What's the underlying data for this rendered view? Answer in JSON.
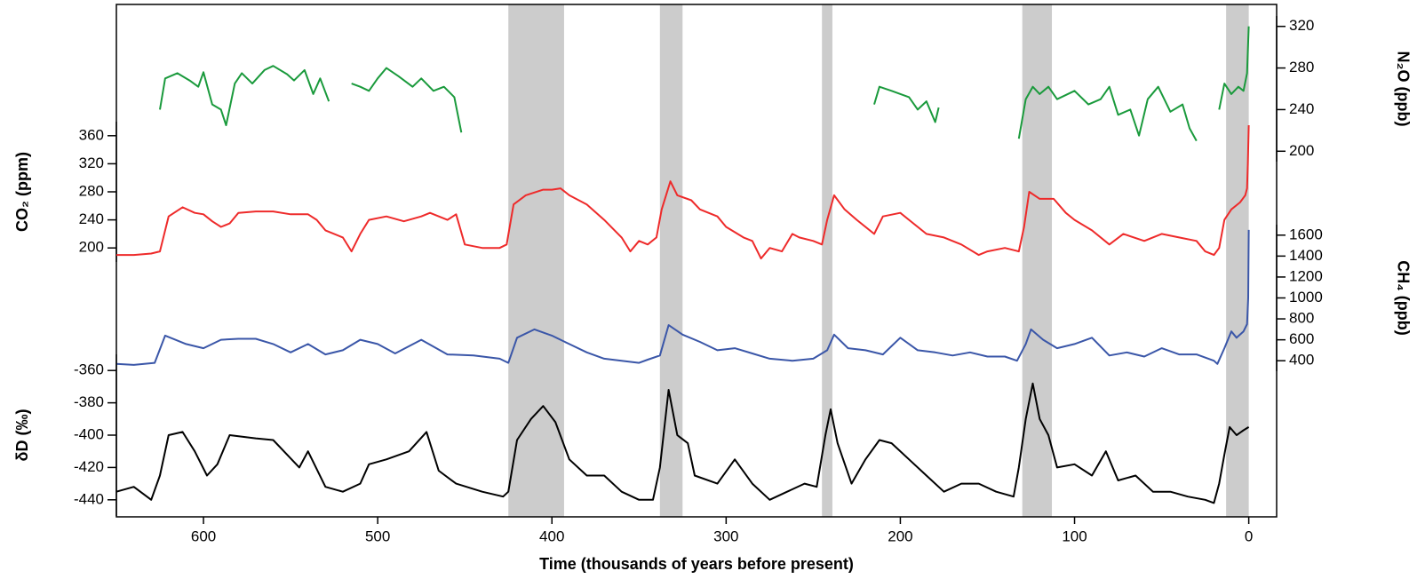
{
  "chart_data": {
    "type": "line",
    "x_label": "Time (thousands of years before present)",
    "xlim": [
      650,
      -16
    ],
    "xticks": [
      600,
      500,
      400,
      300,
      200,
      100,
      0
    ],
    "shaded": [
      [
        425,
        393
      ],
      [
        338,
        325
      ],
      [
        245,
        239
      ],
      [
        130,
        113
      ],
      [
        13,
        0
      ]
    ],
    "panels": [
      {
        "y_label": "N₂O (ppb)",
        "side": "right",
        "ylim": [
          190,
          330
        ],
        "yticks": [
          200,
          240,
          280,
          320
        ],
        "color": "#1a9a3c",
        "x": [
          625,
          622,
          615,
          608,
          603,
          600,
          595,
          590,
          587,
          582,
          578,
          572,
          565,
          560,
          552,
          548,
          542,
          537,
          533,
          528,
          520,
          515,
          510,
          505,
          500,
          495,
          488,
          480,
          475,
          468,
          462,
          456,
          452,
          330,
          215,
          212,
          205,
          195,
          190,
          185,
          180,
          178,
          150,
          132,
          128,
          124,
          120,
          115,
          110,
          100,
          92,
          85,
          80,
          75,
          68,
          63,
          58,
          52,
          45,
          38,
          34,
          30,
          22,
          17,
          14,
          10,
          6,
          3,
          1,
          0
        ],
        "values": [
          240,
          270,
          275,
          268,
          262,
          276,
          245,
          240,
          225,
          265,
          275,
          265,
          278,
          282,
          274,
          268,
          278,
          255,
          270,
          248,
          null,
          265,
          262,
          258,
          270,
          280,
          272,
          262,
          270,
          258,
          262,
          252,
          218,
          null,
          245,
          262,
          258,
          252,
          240,
          248,
          228,
          242,
          null,
          212,
          250,
          262,
          255,
          262,
          250,
          258,
          245,
          250,
          262,
          235,
          240,
          215,
          250,
          262,
          238,
          245,
          222,
          210,
          null,
          240,
          265,
          255,
          262,
          258,
          275,
          320
        ]
      },
      {
        "y_label": "CO₂ (ppm)",
        "side": "left",
        "ylim": [
          180,
          380
        ],
        "yticks": [
          200,
          240,
          280,
          320,
          360
        ],
        "color": "#ee2a2a",
        "x": [
          650,
          640,
          630,
          625,
          620,
          612,
          605,
          600,
          595,
          590,
          585,
          580,
          570,
          560,
          550,
          540,
          535,
          530,
          520,
          515,
          510,
          505,
          495,
          485,
          475,
          470,
          460,
          455,
          450,
          440,
          430,
          426,
          422,
          415,
          405,
          400,
          395,
          390,
          380,
          370,
          360,
          355,
          350,
          345,
          340,
          337,
          332,
          328,
          320,
          315,
          305,
          300,
          290,
          285,
          280,
          275,
          268,
          262,
          258,
          250,
          245,
          242,
          238,
          232,
          225,
          215,
          210,
          200,
          195,
          185,
          175,
          165,
          155,
          150,
          140,
          132,
          129,
          126,
          120,
          112,
          105,
          100,
          90,
          80,
          72,
          60,
          50,
          40,
          30,
          25,
          20,
          17,
          14,
          10,
          5,
          2,
          1,
          0.5,
          0
        ],
        "values": [
          190,
          190,
          192,
          195,
          245,
          258,
          250,
          248,
          238,
          230,
          235,
          250,
          252,
          252,
          248,
          248,
          240,
          225,
          215,
          195,
          220,
          240,
          245,
          238,
          245,
          250,
          240,
          248,
          205,
          200,
          200,
          205,
          262,
          275,
          283,
          283,
          285,
          275,
          262,
          240,
          215,
          195,
          210,
          205,
          215,
          255,
          295,
          275,
          268,
          255,
          245,
          230,
          215,
          210,
          185,
          200,
          195,
          220,
          215,
          210,
          205,
          240,
          275,
          255,
          240,
          220,
          245,
          250,
          240,
          220,
          215,
          205,
          190,
          195,
          200,
          195,
          230,
          280,
          270,
          270,
          250,
          240,
          225,
          205,
          220,
          210,
          220,
          215,
          210,
          195,
          190,
          200,
          240,
          255,
          265,
          275,
          285,
          320,
          375
        ]
      },
      {
        "y_label": "CH₄ (ppb)",
        "side": "right",
        "ylim": [
          300,
          1700
        ],
        "yticks": [
          400,
          600,
          800,
          1000,
          1200,
          1400,
          1600
        ],
        "color": "#3a56a8",
        "x": [
          650,
          640,
          628,
          622,
          610,
          600,
          590,
          580,
          570,
          560,
          550,
          540,
          530,
          520,
          510,
          500,
          490,
          475,
          460,
          445,
          430,
          425,
          420,
          410,
          400,
          390,
          380,
          370,
          360,
          350,
          345,
          338,
          333,
          325,
          315,
          305,
          295,
          285,
          275,
          262,
          250,
          242,
          238,
          230,
          220,
          210,
          200,
          190,
          180,
          170,
          160,
          150,
          140,
          133,
          128,
          125,
          118,
          110,
          100,
          90,
          80,
          70,
          60,
          50,
          40,
          30,
          20,
          18,
          14,
          10,
          7,
          3,
          1,
          0.3,
          0
        ],
        "values": [
          370,
          360,
          380,
          640,
          560,
          520,
          600,
          610,
          610,
          560,
          480,
          560,
          460,
          500,
          600,
          560,
          470,
          600,
          460,
          450,
          420,
          380,
          620,
          700,
          640,
          560,
          480,
          420,
          400,
          380,
          410,
          450,
          740,
          650,
          580,
          500,
          520,
          470,
          420,
          400,
          420,
          500,
          650,
          520,
          500,
          460,
          620,
          500,
          480,
          450,
          480,
          440,
          440,
          400,
          560,
          700,
          600,
          520,
          560,
          620,
          450,
          480,
          440,
          520,
          460,
          460,
          400,
          370,
          520,
          680,
          620,
          680,
          750,
          1000,
          1650
        ]
      },
      {
        "y_label": "δD (‰)",
        "side": "left",
        "ylim": [
          -450,
          -350
        ],
        "yticks": [
          -360,
          -380,
          -400,
          -420,
          -440
        ],
        "color": "#000000",
        "x": [
          650,
          640,
          630,
          625,
          620,
          612,
          605,
          598,
          592,
          585,
          570,
          560,
          545,
          540,
          530,
          520,
          510,
          505,
          495,
          482,
          472,
          465,
          455,
          440,
          428,
          425,
          420,
          412,
          405,
          398,
          390,
          380,
          370,
          360,
          350,
          342,
          338,
          333,
          328,
          322,
          318,
          305,
          295,
          285,
          275,
          265,
          255,
          248,
          243,
          240,
          236,
          228,
          220,
          212,
          205,
          195,
          185,
          175,
          165,
          155,
          145,
          135,
          132,
          128,
          124,
          120,
          115,
          110,
          100,
          90,
          82,
          75,
          65,
          55,
          45,
          35,
          25,
          20,
          17,
          14,
          11,
          7,
          3,
          0
        ],
        "values": [
          -435,
          -432,
          -440,
          -425,
          -400,
          -398,
          -410,
          -425,
          -418,
          -400,
          -402,
          -403,
          -420,
          -410,
          -432,
          -435,
          -430,
          -418,
          -415,
          -410,
          -398,
          -422,
          -430,
          -435,
          -438,
          -435,
          -403,
          -390,
          -382,
          -392,
          -415,
          -425,
          -425,
          -435,
          -440,
          -440,
          -420,
          -372,
          -400,
          -405,
          -425,
          -430,
          -415,
          -430,
          -440,
          -435,
          -430,
          -432,
          -400,
          -384,
          -405,
          -430,
          -415,
          -403,
          -405,
          -415,
          -425,
          -435,
          -430,
          -430,
          -435,
          -438,
          -420,
          -390,
          -368,
          -390,
          -400,
          -420,
          -418,
          -425,
          -410,
          -428,
          -425,
          -435,
          -435,
          -438,
          -440,
          -442,
          -430,
          -412,
          -395,
          -400,
          -397,
          -395
        ]
      }
    ]
  }
}
